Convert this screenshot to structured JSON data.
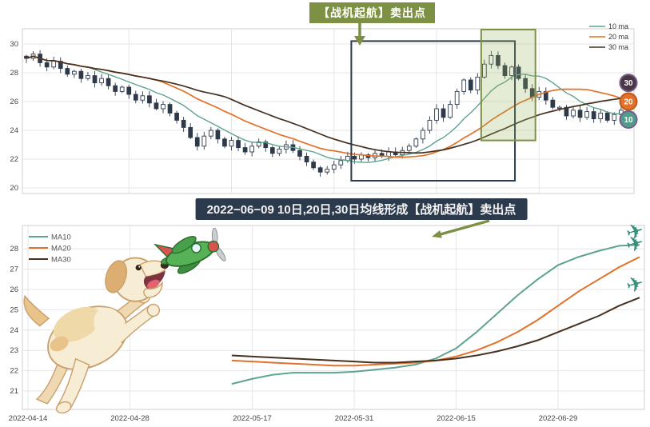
{
  "colors": {
    "ma10": "#5ea392",
    "ma20": "#e2712a",
    "ma30": "#46301f",
    "candle": "#2e3a4a",
    "annotation_green": "#7d9144",
    "banner_bg": "#2b3a4d",
    "box_navy": "#2b3a4d",
    "grid": "#e6e6e6",
    "axis_text": "#444444",
    "plane_icon": "#37907c"
  },
  "decorations": {
    "airplane_glyph": "✈",
    "dog_illustration": "puppy-jumping-at-toy-airplane",
    "toy_plane_illustration": "green-toy-airplane",
    "right_airplanes_count": 3
  },
  "chart_data": [
    {
      "type": "candlestick",
      "annotation": {
        "text": "【战机起航】卖出点"
      },
      "ylim": [
        19.5,
        31.2
      ],
      "yticks": [
        20,
        22,
        24,
        26,
        28,
        30
      ],
      "grid": "on",
      "legend_position": "top-right",
      "legend": [
        {
          "label": "10 ma",
          "color": "#5ea392"
        },
        {
          "label": "20 ma",
          "color": "#e2712a"
        },
        {
          "label": "30 ma",
          "color": "#46301f"
        }
      ],
      "ma_periods": [
        10,
        20,
        30
      ],
      "closes": [
        29.0,
        29.3,
        28.7,
        28.4,
        28.8,
        28.3,
        27.9,
        28.1,
        27.6,
        27.8,
        27.3,
        27.6,
        27.1,
        26.7,
        27.0,
        26.5,
        26.1,
        26.4,
        25.9,
        25.5,
        25.8,
        25.2,
        24.7,
        24.2,
        23.5,
        22.9,
        23.6,
        24.0,
        23.4,
        22.9,
        23.3,
        22.8,
        22.5,
        22.9,
        23.2,
        22.8,
        22.4,
        22.7,
        23.0,
        22.6,
        22.2,
        21.8,
        21.4,
        21.1,
        21.3,
        21.6,
        21.9,
        22.2,
        22.0,
        22.3,
        22.1,
        22.4,
        22.2,
        22.5,
        22.3,
        22.6,
        22.9,
        23.4,
        24.0,
        24.7,
        25.5,
        24.9,
        25.8,
        26.7,
        27.5,
        26.8,
        27.7,
        28.6,
        29.2,
        28.5,
        27.8,
        28.4,
        27.6,
        26.9,
        26.3,
        26.7,
        26.1,
        25.6,
        25.6,
        25.0,
        25.4,
        24.9,
        25.3,
        24.8,
        25.2,
        24.7,
        25.1,
        25.4
      ],
      "badges": [
        {
          "label": "30",
          "price": 27.3,
          "color": "#4a3545",
          "ring": "#745d7d"
        },
        {
          "label": "20",
          "price": 26.0,
          "color": "#e2712a",
          "ring": "#c05a1a"
        },
        {
          "label": "10",
          "price": 24.75,
          "color": "#4f9e88",
          "ring": "#7a5b8a"
        }
      ],
      "highlight_boxes": [
        {
          "name": "signal-window-box",
          "start_idx": 48,
          "end_idx": 71,
          "price_top": 30.2,
          "price_bottom": 20.5,
          "stroke": "#2b3a4d",
          "fill": "none"
        },
        {
          "name": "sell-pattern-box",
          "start_idx": 67,
          "end_idx": 74,
          "price_top": 31.0,
          "price_bottom": 23.3,
          "stroke": "#7d9144",
          "fill": "rgba(150,180,90,0.25)"
        }
      ]
    },
    {
      "type": "line",
      "title": "2022−06−09 10日,20日,30日均线形成【战机起航】卖出点",
      "x_tick_labels": [
        "2022-04-14",
        "2022-04-28",
        "2022-05-17",
        "2022-05-31",
        "2022-06-15",
        "2022-06-29"
      ],
      "x_tick_idx": [
        0,
        10,
        22,
        32,
        42,
        52
      ],
      "x_range": [
        0,
        60
      ],
      "ylim": [
        20.1,
        29.15
      ],
      "yticks": [
        21,
        22,
        23,
        24,
        25,
        26,
        27,
        28
      ],
      "grid": "on",
      "legend_position": "top-left",
      "series": [
        {
          "name": "MA10",
          "color": "#5ea392",
          "start_idx": 20,
          "step": 2,
          "values": [
            21.35,
            21.6,
            21.8,
            21.9,
            21.9,
            21.9,
            21.95,
            22.05,
            22.15,
            22.3,
            22.6,
            23.1,
            23.9,
            24.8,
            25.7,
            26.5,
            27.2,
            27.6,
            27.9,
            28.15,
            28.2
          ]
        },
        {
          "name": "MA20",
          "color": "#e2712a",
          "start_idx": 20,
          "step": 2,
          "values": [
            22.5,
            22.45,
            22.4,
            22.35,
            22.3,
            22.25,
            22.25,
            22.3,
            22.35,
            22.4,
            22.5,
            22.7,
            23.0,
            23.4,
            23.9,
            24.5,
            25.2,
            25.9,
            26.5,
            27.1,
            27.6
          ]
        },
        {
          "name": "MA30",
          "color": "#46301f",
          "start_idx": 20,
          "step": 2,
          "values": [
            22.75,
            22.7,
            22.65,
            22.6,
            22.55,
            22.5,
            22.45,
            22.4,
            22.4,
            22.45,
            22.5,
            22.6,
            22.75,
            22.95,
            23.2,
            23.5,
            23.9,
            24.3,
            24.7,
            25.2,
            25.6
          ]
        }
      ]
    }
  ]
}
